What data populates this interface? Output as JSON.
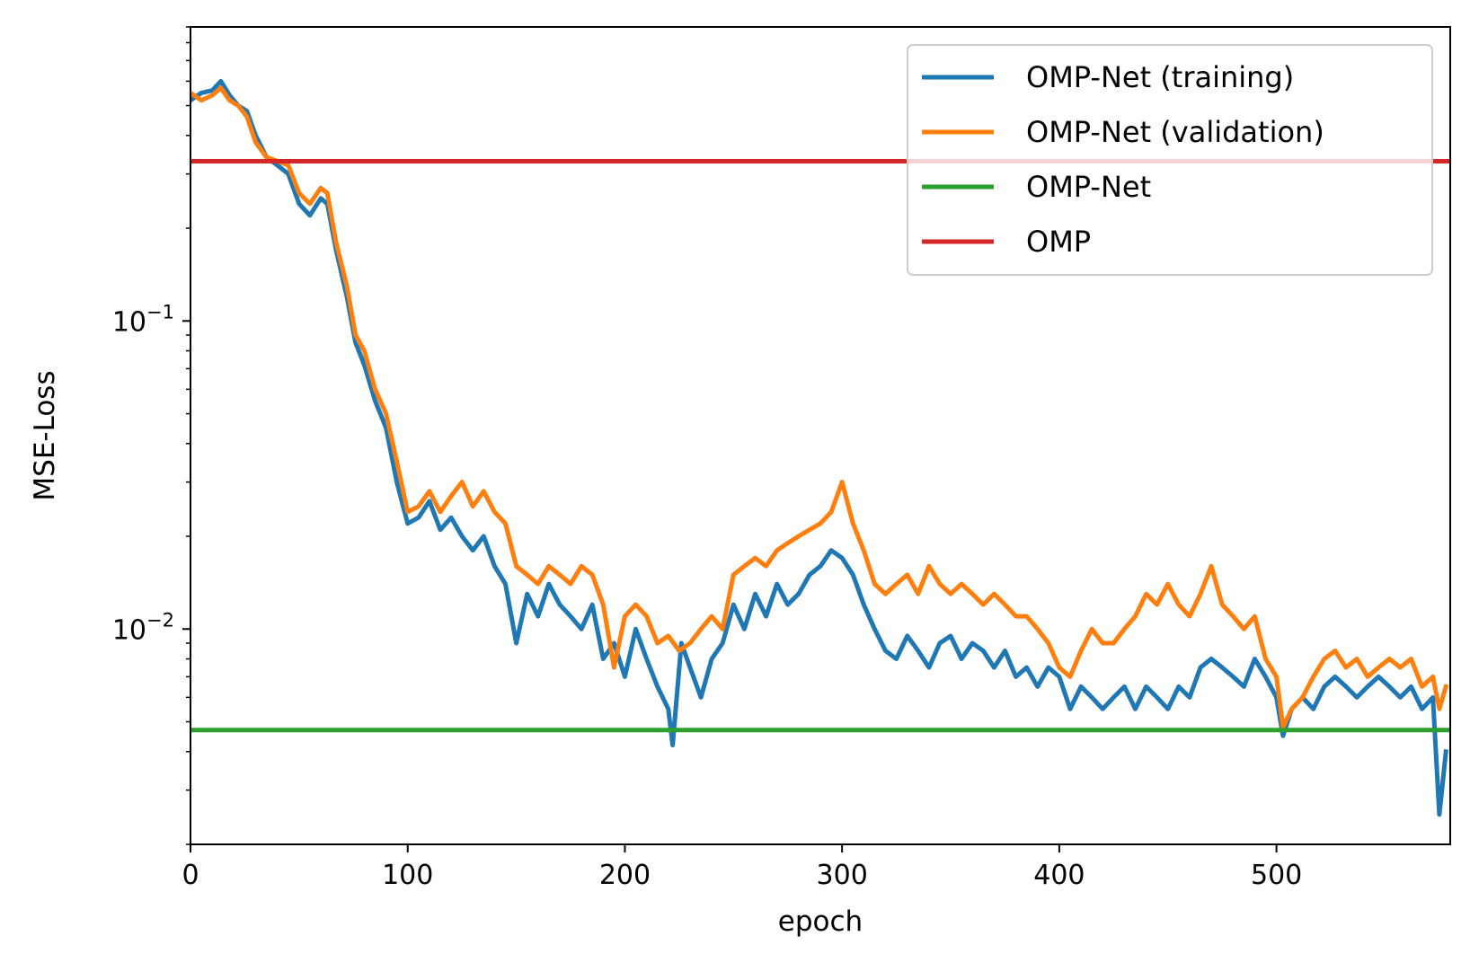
{
  "chart_data": {
    "type": "line",
    "xlabel": "epoch",
    "ylabel": "MSE-Loss",
    "xlim": [
      0,
      580
    ],
    "ylim": [
      0.002,
      0.9
    ],
    "yscale": "log",
    "grid": false,
    "legend_position": "top-right",
    "x_ticks": [
      {
        "value": 0,
        "label": "0"
      },
      {
        "value": 100,
        "label": "100"
      },
      {
        "value": 200,
        "label": "200"
      },
      {
        "value": 300,
        "label": "300"
      },
      {
        "value": 400,
        "label": "400"
      },
      {
        "value": 500,
        "label": "500"
      }
    ],
    "y_ticks": [
      {
        "value": 0.1,
        "base": "10",
        "exp": "−1"
      },
      {
        "value": 0.01,
        "base": "10",
        "exp": "−2"
      }
    ],
    "series": [
      {
        "name": "OMP-Net (training)",
        "color": "#1f77b4",
        "style": "line",
        "points": [
          [
            0,
            0.52
          ],
          [
            5,
            0.55
          ],
          [
            10,
            0.56
          ],
          [
            14,
            0.6
          ],
          [
            18,
            0.54
          ],
          [
            22,
            0.5
          ],
          [
            26,
            0.48
          ],
          [
            30,
            0.4
          ],
          [
            35,
            0.34
          ],
          [
            40,
            0.32
          ],
          [
            45,
            0.3
          ],
          [
            50,
            0.24
          ],
          [
            55,
            0.22
          ],
          [
            60,
            0.25
          ],
          [
            63,
            0.24
          ],
          [
            67,
            0.17
          ],
          [
            72,
            0.12
          ],
          [
            76,
            0.085
          ],
          [
            80,
            0.072
          ],
          [
            85,
            0.055
          ],
          [
            90,
            0.045
          ],
          [
            95,
            0.03
          ],
          [
            100,
            0.022
          ],
          [
            105,
            0.023
          ],
          [
            110,
            0.026
          ],
          [
            115,
            0.021
          ],
          [
            120,
            0.023
          ],
          [
            125,
            0.02
          ],
          [
            130,
            0.018
          ],
          [
            135,
            0.02
          ],
          [
            140,
            0.016
          ],
          [
            145,
            0.014
          ],
          [
            150,
            0.009
          ],
          [
            155,
            0.013
          ],
          [
            160,
            0.011
          ],
          [
            165,
            0.014
          ],
          [
            170,
            0.012
          ],
          [
            175,
            0.011
          ],
          [
            180,
            0.01
          ],
          [
            185,
            0.012
          ],
          [
            190,
            0.008
          ],
          [
            195,
            0.009
          ],
          [
            200,
            0.007
          ],
          [
            205,
            0.01
          ],
          [
            210,
            0.008
          ],
          [
            215,
            0.0065
          ],
          [
            220,
            0.0055
          ],
          [
            222,
            0.0042
          ],
          [
            226,
            0.009
          ],
          [
            230,
            0.0075
          ],
          [
            235,
            0.006
          ],
          [
            240,
            0.008
          ],
          [
            245,
            0.009
          ],
          [
            250,
            0.012
          ],
          [
            255,
            0.01
          ],
          [
            260,
            0.013
          ],
          [
            265,
            0.011
          ],
          [
            270,
            0.014
          ],
          [
            275,
            0.012
          ],
          [
            280,
            0.013
          ],
          [
            285,
            0.015
          ],
          [
            290,
            0.016
          ],
          [
            295,
            0.018
          ],
          [
            300,
            0.017
          ],
          [
            305,
            0.015
          ],
          [
            310,
            0.012
          ],
          [
            315,
            0.01
          ],
          [
            320,
            0.0085
          ],
          [
            325,
            0.008
          ],
          [
            330,
            0.0095
          ],
          [
            335,
            0.0085
          ],
          [
            340,
            0.0075
          ],
          [
            345,
            0.009
          ],
          [
            350,
            0.0095
          ],
          [
            355,
            0.008
          ],
          [
            360,
            0.009
          ],
          [
            365,
            0.0085
          ],
          [
            370,
            0.0075
          ],
          [
            375,
            0.0085
          ],
          [
            380,
            0.007
          ],
          [
            385,
            0.0075
          ],
          [
            390,
            0.0065
          ],
          [
            395,
            0.0075
          ],
          [
            400,
            0.007
          ],
          [
            405,
            0.0055
          ],
          [
            410,
            0.0065
          ],
          [
            415,
            0.006
          ],
          [
            420,
            0.0055
          ],
          [
            425,
            0.006
          ],
          [
            430,
            0.0065
          ],
          [
            435,
            0.0055
          ],
          [
            440,
            0.0065
          ],
          [
            445,
            0.006
          ],
          [
            450,
            0.0055
          ],
          [
            455,
            0.0065
          ],
          [
            460,
            0.006
          ],
          [
            465,
            0.0075
          ],
          [
            470,
            0.008
          ],
          [
            475,
            0.0075
          ],
          [
            480,
            0.007
          ],
          [
            485,
            0.0065
          ],
          [
            490,
            0.008
          ],
          [
            495,
            0.007
          ],
          [
            500,
            0.006
          ],
          [
            503,
            0.0045
          ],
          [
            507,
            0.0055
          ],
          [
            512,
            0.006
          ],
          [
            517,
            0.0055
          ],
          [
            522,
            0.0065
          ],
          [
            527,
            0.007
          ],
          [
            532,
            0.0065
          ],
          [
            537,
            0.006
          ],
          [
            542,
            0.0065
          ],
          [
            547,
            0.007
          ],
          [
            552,
            0.0065
          ],
          [
            557,
            0.006
          ],
          [
            562,
            0.0065
          ],
          [
            567,
            0.0055
          ],
          [
            572,
            0.006
          ],
          [
            575,
            0.0025
          ],
          [
            578,
            0.004
          ]
        ]
      },
      {
        "name": "OMP-Net (validation)",
        "color": "#ff7f0e",
        "style": "line",
        "points": [
          [
            0,
            0.55
          ],
          [
            5,
            0.52
          ],
          [
            10,
            0.54
          ],
          [
            14,
            0.57
          ],
          [
            18,
            0.52
          ],
          [
            22,
            0.5
          ],
          [
            26,
            0.46
          ],
          [
            30,
            0.38
          ],
          [
            35,
            0.34
          ],
          [
            40,
            0.33
          ],
          [
            45,
            0.32
          ],
          [
            50,
            0.26
          ],
          [
            55,
            0.24
          ],
          [
            60,
            0.27
          ],
          [
            63,
            0.26
          ],
          [
            67,
            0.18
          ],
          [
            72,
            0.13
          ],
          [
            76,
            0.09
          ],
          [
            80,
            0.08
          ],
          [
            85,
            0.06
          ],
          [
            90,
            0.05
          ],
          [
            95,
            0.035
          ],
          [
            100,
            0.024
          ],
          [
            105,
            0.025
          ],
          [
            110,
            0.028
          ],
          [
            115,
            0.024
          ],
          [
            120,
            0.027
          ],
          [
            125,
            0.03
          ],
          [
            130,
            0.025
          ],
          [
            135,
            0.028
          ],
          [
            140,
            0.024
          ],
          [
            145,
            0.022
          ],
          [
            150,
            0.016
          ],
          [
            155,
            0.015
          ],
          [
            160,
            0.014
          ],
          [
            165,
            0.016
          ],
          [
            170,
            0.015
          ],
          [
            175,
            0.014
          ],
          [
            180,
            0.016
          ],
          [
            185,
            0.015
          ],
          [
            190,
            0.012
          ],
          [
            195,
            0.0075
          ],
          [
            200,
            0.011
          ],
          [
            205,
            0.012
          ],
          [
            210,
            0.011
          ],
          [
            215,
            0.009
          ],
          [
            220,
            0.0095
          ],
          [
            225,
            0.0085
          ],
          [
            230,
            0.009
          ],
          [
            235,
            0.01
          ],
          [
            240,
            0.011
          ],
          [
            245,
            0.01
          ],
          [
            250,
            0.015
          ],
          [
            255,
            0.016
          ],
          [
            260,
            0.017
          ],
          [
            265,
            0.016
          ],
          [
            270,
            0.018
          ],
          [
            275,
            0.019
          ],
          [
            280,
            0.02
          ],
          [
            285,
            0.021
          ],
          [
            290,
            0.022
          ],
          [
            295,
            0.024
          ],
          [
            300,
            0.03
          ],
          [
            305,
            0.022
          ],
          [
            310,
            0.018
          ],
          [
            315,
            0.014
          ],
          [
            320,
            0.013
          ],
          [
            325,
            0.014
          ],
          [
            330,
            0.015
          ],
          [
            335,
            0.013
          ],
          [
            340,
            0.016
          ],
          [
            345,
            0.014
          ],
          [
            350,
            0.013
          ],
          [
            355,
            0.014
          ],
          [
            360,
            0.013
          ],
          [
            365,
            0.012
          ],
          [
            370,
            0.013
          ],
          [
            375,
            0.012
          ],
          [
            380,
            0.011
          ],
          [
            385,
            0.011
          ],
          [
            390,
            0.01
          ],
          [
            395,
            0.009
          ],
          [
            400,
            0.0075
          ],
          [
            405,
            0.007
          ],
          [
            410,
            0.0085
          ],
          [
            415,
            0.01
          ],
          [
            420,
            0.009
          ],
          [
            425,
            0.009
          ],
          [
            430,
            0.01
          ],
          [
            435,
            0.011
          ],
          [
            440,
            0.013
          ],
          [
            445,
            0.012
          ],
          [
            450,
            0.014
          ],
          [
            455,
            0.012
          ],
          [
            460,
            0.011
          ],
          [
            465,
            0.013
          ],
          [
            470,
            0.016
          ],
          [
            475,
            0.012
          ],
          [
            480,
            0.011
          ],
          [
            485,
            0.01
          ],
          [
            490,
            0.011
          ],
          [
            495,
            0.008
          ],
          [
            500,
            0.007
          ],
          [
            503,
            0.0048
          ],
          [
            507,
            0.0055
          ],
          [
            512,
            0.006
          ],
          [
            517,
            0.007
          ],
          [
            522,
            0.008
          ],
          [
            527,
            0.0085
          ],
          [
            532,
            0.0075
          ],
          [
            537,
            0.008
          ],
          [
            542,
            0.007
          ],
          [
            547,
            0.0075
          ],
          [
            552,
            0.008
          ],
          [
            557,
            0.0075
          ],
          [
            562,
            0.008
          ],
          [
            567,
            0.0065
          ],
          [
            572,
            0.007
          ],
          [
            575,
            0.0055
          ],
          [
            578,
            0.0065
          ]
        ]
      },
      {
        "name": "OMP-Net",
        "color": "#2ca02c",
        "style": "hline",
        "y": 0.0047
      },
      {
        "name": "OMP",
        "color": "#d62728",
        "style": "hline",
        "y": 0.33
      }
    ]
  }
}
